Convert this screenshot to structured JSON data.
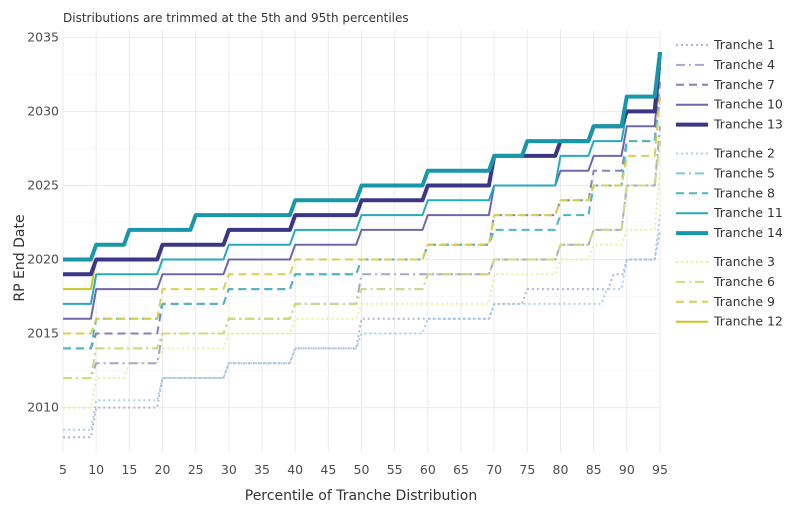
{
  "chart_data": {
    "type": "line",
    "subtitle": "Distributions are trimmed at the 5th and 95th percentiles",
    "xlabel": "Percentile of Tranche Distribution",
    "ylabel": "RP End Date",
    "xlim": [
      5,
      95
    ],
    "ylim": [
      2007,
      2035.5
    ],
    "xticks": [
      5,
      10,
      15,
      20,
      25,
      30,
      35,
      40,
      45,
      50,
      55,
      60,
      65,
      70,
      75,
      80,
      85,
      90,
      95
    ],
    "yticks": [
      2010,
      2015,
      2020,
      2025,
      2030,
      2035
    ],
    "grid": true,
    "legend_position": "right",
    "legend_groups": [
      [
        "Tranche 1",
        "Tranche 4",
        "Tranche 7",
        "Tranche 10",
        "Tranche 13"
      ],
      [
        "Tranche 2",
        "Tranche 5",
        "Tranche 8",
        "Tranche 11",
        "Tranche 14"
      ],
      [
        "Tranche 3",
        "Tranche 6",
        "Tranche 9",
        "Tranche 12"
      ]
    ],
    "series": [
      {
        "name": "Tranche 1",
        "color": "#b4b4d4",
        "dash": "dotted",
        "width": 2,
        "points": [
          [
            5,
            2008
          ],
          [
            10,
            2010
          ],
          [
            20,
            2012
          ],
          [
            30,
            2013
          ],
          [
            40,
            2014
          ],
          [
            50,
            2016
          ],
          [
            60,
            2016
          ],
          [
            70,
            2017
          ],
          [
            75,
            2018
          ],
          [
            80,
            2018
          ],
          [
            85,
            2018
          ],
          [
            88,
            2019
          ],
          [
            90,
            2020
          ],
          [
            95,
            2022
          ]
        ]
      },
      {
        "name": "Tranche 2",
        "color": "#a9d2ec",
        "dash": "dotted",
        "width": 2,
        "points": [
          [
            5,
            2008.5
          ],
          [
            10,
            2010.5
          ],
          [
            20,
            2012
          ],
          [
            30,
            2013
          ],
          [
            40,
            2014
          ],
          [
            50,
            2015
          ],
          [
            60,
            2016
          ],
          [
            70,
            2017
          ],
          [
            80,
            2017
          ],
          [
            87,
            2018
          ],
          [
            90,
            2020
          ],
          [
            95,
            2023
          ]
        ]
      },
      {
        "name": "Tranche 3",
        "color": "#eded9a",
        "dash": "dotted",
        "width": 2,
        "points": [
          [
            5,
            2010
          ],
          [
            10,
            2012
          ],
          [
            15,
            2013
          ],
          [
            20,
            2014
          ],
          [
            30,
            2015
          ],
          [
            40,
            2016
          ],
          [
            50,
            2017
          ],
          [
            60,
            2017
          ],
          [
            70,
            2019
          ],
          [
            80,
            2020
          ],
          [
            85,
            2021
          ],
          [
            90,
            2022
          ],
          [
            95,
            2026
          ]
        ]
      },
      {
        "name": "Tranche 4",
        "color": "#a7a4d0",
        "dash": "dashdot",
        "width": 2,
        "points": [
          [
            5,
            2012
          ],
          [
            10,
            2013
          ],
          [
            20,
            2015
          ],
          [
            30,
            2016
          ],
          [
            40,
            2017
          ],
          [
            50,
            2019
          ],
          [
            60,
            2019
          ],
          [
            70,
            2020
          ],
          [
            80,
            2021
          ],
          [
            85,
            2022
          ],
          [
            90,
            2025
          ],
          [
            95,
            2029
          ]
        ]
      },
      {
        "name": "Tranche 5",
        "color": "#7ccbd6",
        "dash": "dashdot",
        "width": 2,
        "points": [
          [
            5,
            2012
          ],
          [
            10,
            2014
          ],
          [
            20,
            2015
          ],
          [
            30,
            2016
          ],
          [
            40,
            2017
          ],
          [
            50,
            2018
          ],
          [
            60,
            2019
          ],
          [
            70,
            2020
          ],
          [
            80,
            2021
          ],
          [
            85,
            2022
          ],
          [
            90,
            2025
          ],
          [
            95,
            2028
          ]
        ]
      },
      {
        "name": "Tranche 6",
        "color": "#d4d97c",
        "dash": "dashdot",
        "width": 2,
        "points": [
          [
            5,
            2012
          ],
          [
            10,
            2014
          ],
          [
            20,
            2015
          ],
          [
            30,
            2016
          ],
          [
            40,
            2017
          ],
          [
            50,
            2018
          ],
          [
            60,
            2019
          ],
          [
            70,
            2020
          ],
          [
            80,
            2021
          ],
          [
            85,
            2022
          ],
          [
            90,
            2025
          ],
          [
            95,
            2028
          ]
        ]
      },
      {
        "name": "Tranche 7",
        "color": "#8582b8",
        "dash": "dashed",
        "width": 2,
        "points": [
          [
            5,
            2014
          ],
          [
            10,
            2015
          ],
          [
            20,
            2017
          ],
          [
            30,
            2018
          ],
          [
            40,
            2019
          ],
          [
            50,
            2020
          ],
          [
            60,
            2021
          ],
          [
            70,
            2023
          ],
          [
            80,
            2024
          ],
          [
            85,
            2026
          ],
          [
            90,
            2028
          ],
          [
            95,
            2032
          ]
        ]
      },
      {
        "name": "Tranche 8",
        "color": "#4bb7c4",
        "dash": "dashed",
        "width": 2,
        "points": [
          [
            5,
            2014
          ],
          [
            10,
            2016
          ],
          [
            20,
            2017
          ],
          [
            30,
            2018
          ],
          [
            40,
            2019
          ],
          [
            50,
            2020
          ],
          [
            60,
            2021
          ],
          [
            70,
            2022
          ],
          [
            80,
            2023
          ],
          [
            85,
            2025
          ],
          [
            90,
            2028
          ],
          [
            95,
            2031
          ]
        ]
      },
      {
        "name": "Tranche 9",
        "color": "#d9cf4f",
        "dash": "dashed",
        "width": 2,
        "points": [
          [
            5,
            2015
          ],
          [
            10,
            2016
          ],
          [
            20,
            2018
          ],
          [
            30,
            2019
          ],
          [
            40,
            2020
          ],
          [
            50,
            2020
          ],
          [
            60,
            2021
          ],
          [
            70,
            2023
          ],
          [
            80,
            2024
          ],
          [
            85,
            2025
          ],
          [
            90,
            2027
          ],
          [
            95,
            2031
          ]
        ]
      },
      {
        "name": "Tranche 10",
        "color": "#6f68a8",
        "dash": "solid",
        "width": 2,
        "points": [
          [
            5,
            2016
          ],
          [
            10,
            2018
          ],
          [
            20,
            2019
          ],
          [
            30,
            2020
          ],
          [
            40,
            2021
          ],
          [
            50,
            2022
          ],
          [
            60,
            2023
          ],
          [
            70,
            2025
          ],
          [
            80,
            2026
          ],
          [
            85,
            2027
          ],
          [
            90,
            2029
          ],
          [
            95,
            2033
          ]
        ]
      },
      {
        "name": "Tranche 11",
        "color": "#25abbc",
        "dash": "solid",
        "width": 2,
        "points": [
          [
            5,
            2017
          ],
          [
            10,
            2019
          ],
          [
            20,
            2020
          ],
          [
            30,
            2021
          ],
          [
            40,
            2022
          ],
          [
            50,
            2023
          ],
          [
            60,
            2024
          ],
          [
            70,
            2025
          ],
          [
            80,
            2027
          ],
          [
            85,
            2028
          ],
          [
            90,
            2030
          ],
          [
            95,
            2033
          ]
        ]
      },
      {
        "name": "Tranche 12",
        "color": "#c8c81e",
        "dash": "solid",
        "width": 2,
        "points": [
          [
            5,
            2018
          ],
          [
            10,
            2020
          ],
          [
            20,
            2021
          ],
          [
            30,
            2022
          ],
          [
            40,
            2023
          ],
          [
            50,
            2024
          ],
          [
            60,
            2025
          ],
          [
            70,
            2027
          ],
          [
            80,
            2028
          ],
          [
            85,
            2029
          ],
          [
            90,
            2030
          ],
          [
            95,
            2034
          ]
        ]
      },
      {
        "name": "Tranche 13",
        "color": "#3b3786",
        "dash": "solid",
        "width": 4,
        "points": [
          [
            5,
            2019
          ],
          [
            10,
            2020
          ],
          [
            20,
            2021
          ],
          [
            30,
            2022
          ],
          [
            40,
            2023
          ],
          [
            50,
            2024
          ],
          [
            60,
            2025
          ],
          [
            70,
            2027
          ],
          [
            80,
            2028
          ],
          [
            85,
            2029
          ],
          [
            90,
            2030
          ],
          [
            95,
            2034
          ]
        ]
      },
      {
        "name": "Tranche 14",
        "color": "#1897aa",
        "dash": "solid",
        "width": 4,
        "points": [
          [
            5,
            2020
          ],
          [
            10,
            2021
          ],
          [
            15,
            2022
          ],
          [
            20,
            2022
          ],
          [
            25,
            2023
          ],
          [
            35,
            2023
          ],
          [
            40,
            2024
          ],
          [
            45,
            2024
          ],
          [
            50,
            2025
          ],
          [
            55,
            2025
          ],
          [
            60,
            2026
          ],
          [
            65,
            2026
          ],
          [
            70,
            2027
          ],
          [
            75,
            2028
          ],
          [
            80,
            2028
          ],
          [
            85,
            2029
          ],
          [
            90,
            2031
          ],
          [
            95,
            2034
          ]
        ]
      }
    ]
  }
}
